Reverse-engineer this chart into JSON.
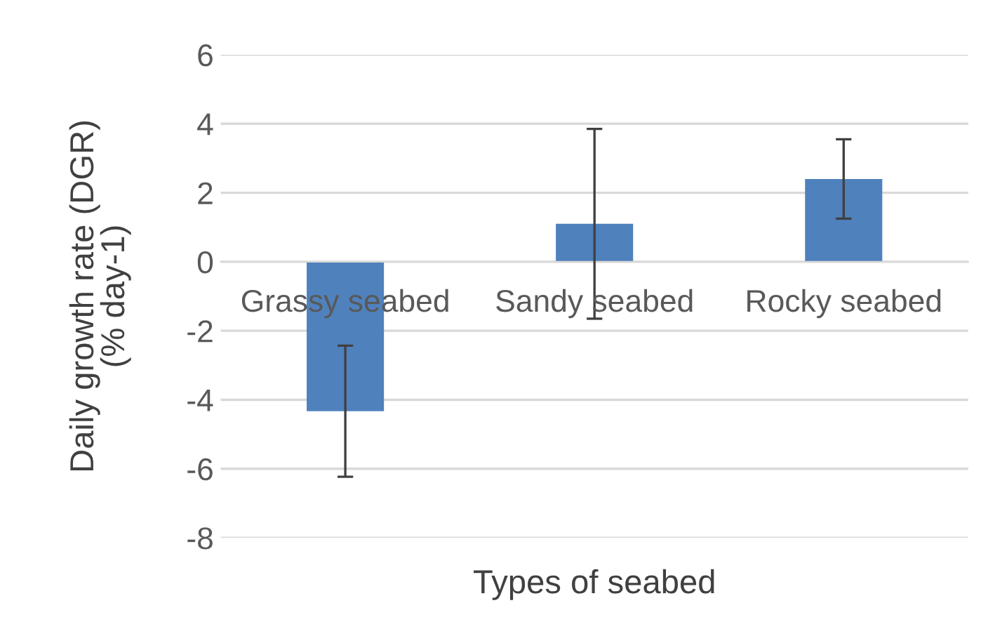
{
  "chart_data": {
    "type": "bar",
    "xlabel": "Types of seabed",
    "ylabel": "Daily growth rate (DGR)\n(% day-1)",
    "categories": [
      "Grassy seabed",
      "Sandy seabed",
      "Rocky seabed"
    ],
    "series": [
      {
        "color": "#4f81bd",
        "values": [
          -4.33,
          1.1,
          2.4
        ],
        "errors": [
          1.9,
          2.75,
          1.15
        ]
      }
    ],
    "ylim": [
      -8,
      6
    ],
    "yticks": [
      -8,
      -6,
      -4,
      -2,
      0,
      2,
      4,
      6
    ],
    "grid": "y",
    "legend": false
  }
}
